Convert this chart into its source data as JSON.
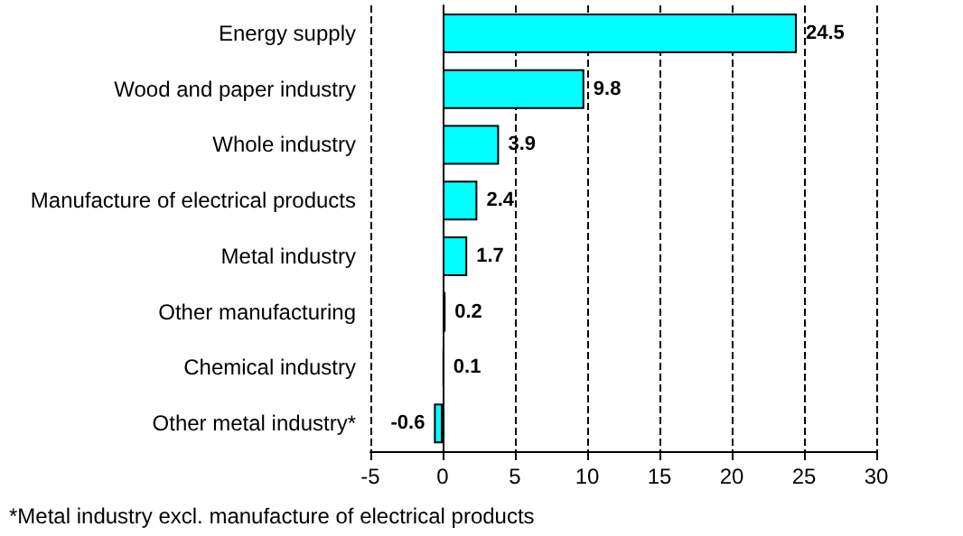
{
  "chart_data": {
    "type": "bar",
    "orientation": "horizontal",
    "categories": [
      "Energy supply",
      "Wood and paper industry",
      "Whole industry",
      "Manufacture of electrical products",
      "Metal industry",
      "Other manufacturing",
      "Chemical industry",
      "Other metal industry*"
    ],
    "values": [
      24.5,
      9.8,
      3.9,
      2.4,
      1.7,
      0.2,
      0.1,
      -0.6
    ],
    "color": "#00ffff",
    "xlim": [
      -5,
      30
    ],
    "xticks": [
      -5,
      0,
      5,
      10,
      15,
      20,
      25,
      30
    ],
    "grid": "x",
    "data_labels": true,
    "annotations": [
      "*Metal industry excl. manufacture of electrical products"
    ]
  }
}
